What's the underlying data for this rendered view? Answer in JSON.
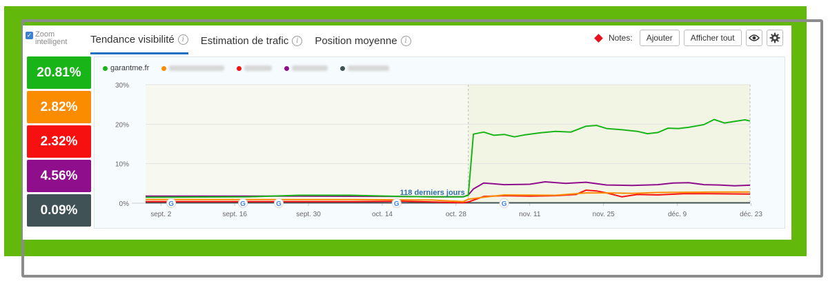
{
  "zoom": {
    "label": "Zoom intelligent",
    "checked": true
  },
  "tabs": [
    {
      "label": "Tendance visibilité",
      "active": true
    },
    {
      "label": "Estimation de trafic",
      "active": false
    },
    {
      "label": "Position moyenne",
      "active": false
    }
  ],
  "notes": {
    "label": "Notes:",
    "add_label": "Ajouter",
    "show_all_label": "Afficher tout"
  },
  "summary": [
    {
      "value": "20.81%",
      "color": "#18b418"
    },
    {
      "value": "2.82%",
      "color": "#fb8c00"
    },
    {
      "value": "2.32%",
      "color": "#f61010"
    },
    {
      "value": "4.56%",
      "color": "#8e0e8c"
    },
    {
      "value": "0.09%",
      "color": "#405256"
    }
  ],
  "chart_data": {
    "type": "line",
    "xlabel": "",
    "ylabel": "",
    "ylim": [
      0,
      30
    ],
    "y_ticks": [
      "0%",
      "10%",
      "20%",
      "30%"
    ],
    "x_ticks": [
      "sept. 2",
      "sept. 16",
      "sept. 30",
      "oct. 14",
      "oct. 28",
      "nov. 11",
      "nov. 25",
      "déc. 9",
      "déc. 23"
    ],
    "grid": true,
    "legend_position": "top-left",
    "annotation": "118 derniers jours",
    "google_update_days": [
      5,
      19,
      26,
      49,
      70
    ],
    "highlight_start_day": 63,
    "series": [
      {
        "name": "garantme.fr",
        "color": "#18b418",
        "blurred": false,
        "points": [
          [
            0,
            1.5
          ],
          [
            20,
            1.6
          ],
          [
            30,
            2.0
          ],
          [
            40,
            2.0
          ],
          [
            50,
            1.7
          ],
          [
            56,
            1.6
          ],
          [
            62,
            1.6
          ],
          [
            63,
            2.0
          ],
          [
            64,
            17.5
          ],
          [
            66,
            18.0
          ],
          [
            68,
            17.2
          ],
          [
            70,
            17.4
          ],
          [
            72,
            16.8
          ],
          [
            74,
            17.3
          ],
          [
            77,
            17.8
          ],
          [
            80,
            18.2
          ],
          [
            83,
            18.0
          ],
          [
            86,
            19.5
          ],
          [
            88,
            19.7
          ],
          [
            90,
            18.9
          ],
          [
            93,
            18.6
          ],
          [
            96,
            18.2
          ],
          [
            98,
            17.6
          ],
          [
            100,
            17.9
          ],
          [
            102,
            19.0
          ],
          [
            104,
            18.9
          ],
          [
            106,
            19.2
          ],
          [
            109,
            19.9
          ],
          [
            111,
            21.2
          ],
          [
            113,
            20.3
          ],
          [
            115,
            20.7
          ],
          [
            117,
            21.1
          ],
          [
            118,
            20.8
          ]
        ]
      },
      {
        "name": "",
        "color": "#fb8c00",
        "blurred": true,
        "legend_width": 80,
        "points": [
          [
            0,
            0.9
          ],
          [
            40,
            0.9
          ],
          [
            56,
            0.8
          ],
          [
            62,
            0.4
          ],
          [
            63,
            1.0
          ],
          [
            66,
            1.5
          ],
          [
            70,
            2.1
          ],
          [
            80,
            2.0
          ],
          [
            86,
            2.6
          ],
          [
            90,
            2.6
          ],
          [
            95,
            2.5
          ],
          [
            100,
            2.7
          ],
          [
            110,
            2.8
          ],
          [
            118,
            2.82
          ]
        ]
      },
      {
        "name": "",
        "color": "#f61010",
        "blurred": true,
        "legend_width": 40,
        "points": [
          [
            0,
            0.4
          ],
          [
            40,
            0.4
          ],
          [
            50,
            0.5
          ],
          [
            56,
            0.3
          ],
          [
            62,
            0.1
          ],
          [
            63,
            0.3
          ],
          [
            66,
            1.7
          ],
          [
            70,
            1.9
          ],
          [
            75,
            1.8
          ],
          [
            80,
            1.9
          ],
          [
            84,
            2.2
          ],
          [
            86,
            3.3
          ],
          [
            88,
            3.1
          ],
          [
            90,
            2.6
          ],
          [
            93,
            1.6
          ],
          [
            96,
            2.2
          ],
          [
            100,
            2.1
          ],
          [
            105,
            2.4
          ],
          [
            110,
            2.4
          ],
          [
            118,
            2.32
          ]
        ]
      },
      {
        "name": "",
        "color": "#8e0e8c",
        "blurred": true,
        "legend_width": 52,
        "points": [
          [
            0,
            1.8
          ],
          [
            30,
            1.8
          ],
          [
            50,
            1.7
          ],
          [
            56,
            1.6
          ],
          [
            62,
            1.6
          ],
          [
            63,
            2.1
          ],
          [
            64,
            3.6
          ],
          [
            66,
            5.1
          ],
          [
            68,
            4.9
          ],
          [
            70,
            4.7
          ],
          [
            75,
            4.8
          ],
          [
            78,
            5.4
          ],
          [
            82,
            5.0
          ],
          [
            86,
            5.3
          ],
          [
            90,
            4.6
          ],
          [
            95,
            4.5
          ],
          [
            100,
            4.7
          ],
          [
            103,
            5.1
          ],
          [
            106,
            5.2
          ],
          [
            109,
            4.7
          ],
          [
            112,
            4.6
          ],
          [
            115,
            4.4
          ],
          [
            118,
            4.56
          ]
        ]
      },
      {
        "name": "",
        "color": "#405256",
        "blurred": true,
        "legend_width": 60,
        "points": [
          [
            0,
            0.1
          ],
          [
            118,
            0.09
          ]
        ]
      }
    ]
  }
}
